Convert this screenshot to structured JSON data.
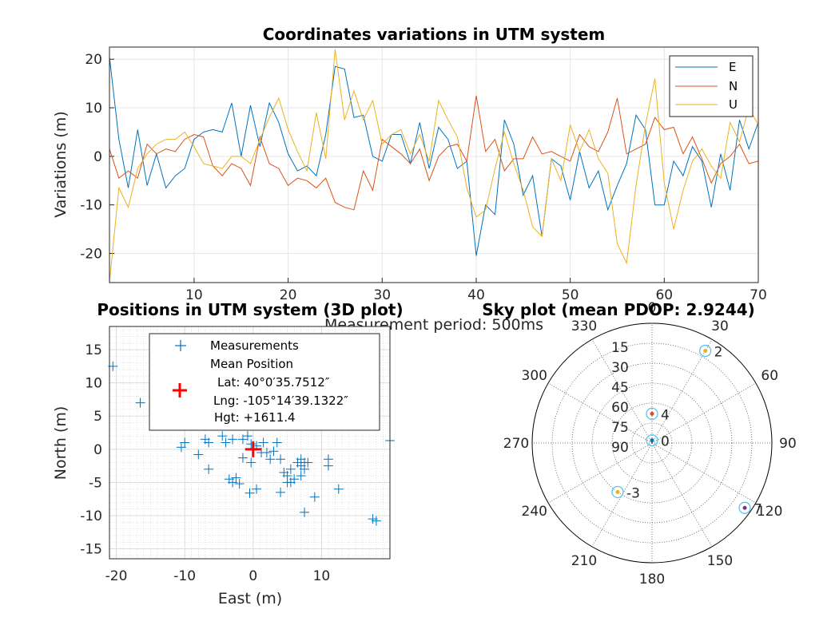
{
  "chart_data": [
    {
      "type": "line",
      "title": "Coordinates variations in UTM system",
      "xlabel": "Measurement period: 500ms",
      "ylabel": "Variations (m)",
      "xlim": [
        1,
        70
      ],
      "ylim": [
        -26,
        22.5
      ],
      "xticks": [
        10,
        20,
        30,
        40,
        50,
        60,
        70
      ],
      "yticks": [
        -20,
        -10,
        0,
        10,
        20
      ],
      "grid": true,
      "legend_position": "top-right",
      "colors": [
        "#0072BD",
        "#D95319",
        "#EDB120"
      ],
      "x": [
        1,
        2,
        3,
        4,
        5,
        6,
        7,
        8,
        9,
        10,
        11,
        12,
        13,
        14,
        15,
        16,
        17,
        18,
        19,
        20,
        21,
        22,
        23,
        24,
        25,
        26,
        27,
        28,
        29,
        30,
        31,
        32,
        33,
        34,
        35,
        36,
        37,
        38,
        39,
        40,
        41,
        42,
        43,
        44,
        45,
        46,
        47,
        48,
        49,
        50,
        51,
        52,
        53,
        54,
        55,
        56,
        57,
        58,
        59,
        60,
        61,
        62,
        63,
        64,
        65,
        66,
        67,
        68,
        69,
        70
      ],
      "series": [
        {
          "name": "E",
          "values": [
            20.5,
            3.5,
            -6.5,
            5.5,
            -6,
            0.5,
            -6.5,
            -4,
            -2.5,
            3.5,
            5,
            5.5,
            5,
            11,
            0,
            10.5,
            2,
            11,
            7,
            0.5,
            -3,
            -2,
            -4,
            4.5,
            18.5,
            18,
            8,
            8.5,
            0,
            -1,
            4.5,
            4.5,
            -1.5,
            7,
            -2.5,
            6,
            3.5,
            -2.5,
            -1,
            -20.5,
            -10,
            -12,
            7.5,
            2.5,
            -8,
            -4,
            -16.5,
            -0.5,
            -2,
            -9,
            1,
            -6.5,
            -3,
            -11,
            -6,
            -1.5,
            8.5,
            5.5,
            -10,
            -10,
            -1,
            -4,
            2,
            -1,
            -10.5,
            0.5,
            -7,
            7.5,
            1.5,
            7
          ]
        },
        {
          "name": "N",
          "values": [
            1.5,
            -4.5,
            -3,
            -4.5,
            2.5,
            0.5,
            1.5,
            1,
            3.5,
            4.5,
            4,
            -2,
            -4,
            -1.5,
            -2.5,
            -6,
            4,
            -1.5,
            -2.5,
            -6,
            -4.5,
            -5,
            -6.5,
            -4.5,
            -9.5,
            -10.5,
            -11,
            -3,
            -7,
            3.5,
            2,
            0.5,
            -1.5,
            1.5,
            -5,
            0,
            2,
            2.5,
            -1,
            12.5,
            1,
            3.5,
            -3,
            -0.5,
            -0.5,
            4,
            0.5,
            1,
            0,
            -1,
            4.5,
            2,
            1,
            5,
            12,
            0.5,
            1.5,
            2.5,
            8,
            5.5,
            6,
            0.5,
            4,
            -0.5,
            -5.5,
            -1.5,
            0,
            2.5,
            -1.5,
            -1
          ]
        },
        {
          "name": "U",
          "values": [
            -26,
            -6.5,
            -10.5,
            -2.5,
            0.5,
            2.5,
            3.5,
            3.5,
            5,
            2,
            -1.5,
            -2,
            -2.5,
            0,
            0,
            -1.5,
            3.5,
            8,
            12,
            5.5,
            1,
            -3,
            9,
            -0.5,
            22,
            7.5,
            13.5,
            7.5,
            11.5,
            2.5,
            4.5,
            5.5,
            0.5,
            4.5,
            -1,
            11.5,
            7.5,
            4,
            -6.5,
            -12.5,
            -11,
            -2.5,
            5,
            -1.5,
            -7,
            -14.5,
            -16.5,
            -0.5,
            -5,
            6.5,
            1,
            5.5,
            -0.5,
            -3.5,
            -18,
            -22,
            -6,
            6.5,
            16,
            -5.5,
            -15,
            -7,
            -1,
            1.5,
            -2,
            -4.5,
            7,
            3,
            10,
            6.5
          ]
        }
      ]
    },
    {
      "type": "scatter",
      "title": "Positions in UTM system (3D plot)",
      "xlabel": "East (m)",
      "ylabel": "North (m)",
      "xlim": [
        -21,
        20
      ],
      "ylim": [
        -16.5,
        18.5
      ],
      "xticks": [
        -20,
        -10,
        0,
        10
      ],
      "yticks": [
        -15,
        -10,
        -5,
        0,
        5,
        10,
        15
      ],
      "grid": true,
      "legend_position": "top-center",
      "series": [
        {
          "name": "Measurements",
          "color": "#0072BD",
          "marker": "+",
          "points": [
            [
              -20.5,
              12.5
            ],
            [
              -16.5,
              7
            ],
            [
              -10.5,
              0.3
            ],
            [
              -10,
              1
            ],
            [
              -8,
              -0.8
            ],
            [
              -7,
              1.5
            ],
            [
              -6.5,
              1
            ],
            [
              -6.5,
              -3
            ],
            [
              -4.5,
              2
            ],
            [
              -4,
              1
            ],
            [
              -3.5,
              -4.5
            ],
            [
              -3,
              1.5
            ],
            [
              -3,
              -5
            ],
            [
              -2.5,
              -4.3
            ],
            [
              -2,
              -5.2
            ],
            [
              -1.5,
              1.5
            ],
            [
              -1.5,
              -1.3
            ],
            [
              -0.8,
              2
            ],
            [
              -0.3,
              0.8
            ],
            [
              -0.5,
              -6.6
            ],
            [
              -0.3,
              -2
            ],
            [
              0.5,
              -6
            ],
            [
              0.5,
              0.5
            ],
            [
              1.2,
              -0.5
            ],
            [
              1.5,
              1
            ],
            [
              2,
              -0.5
            ],
            [
              2.5,
              -1.5
            ],
            [
              3,
              -0.3
            ],
            [
              3.5,
              1
            ],
            [
              4,
              -1.5
            ],
            [
              4,
              -6.5
            ],
            [
              4.5,
              -3.5
            ],
            [
              5,
              -4
            ],
            [
              5,
              -5
            ],
            [
              5.5,
              -5
            ],
            [
              5.5,
              -3
            ],
            [
              6,
              -4.5
            ],
            [
              6.5,
              -2
            ],
            [
              7,
              -1.5
            ],
            [
              7,
              -2.5
            ],
            [
              7,
              -4
            ],
            [
              7.5,
              -2
            ],
            [
              7.5,
              -3
            ],
            [
              7.5,
              -9.5
            ],
            [
              8,
              -2
            ],
            [
              9,
              -7.2
            ],
            [
              11,
              -1.5
            ],
            [
              11,
              -2.5
            ],
            [
              12.5,
              -6
            ],
            [
              17.5,
              -10.5
            ],
            [
              18,
              -10.8
            ],
            [
              20,
              1.3
            ]
          ]
        },
        {
          "name": "Mean Position",
          "color": "#FF0000",
          "marker": "+",
          "points": [
            [
              0,
              0
            ]
          ]
        }
      ],
      "legend": {
        "measurements": "Measurements",
        "mean_position": "Mean Position",
        "lat": "Lat: 40°0′35.7512″",
        "lng": "Lng: -105°14′39.1322″",
        "hgt": "Hgt: +1611.4"
      }
    },
    {
      "type": "scatter",
      "subtype": "polar-skyplot",
      "title": "Sky plot (mean PDOP: 2.9244)",
      "azimuth_labels": [
        "0",
        "30",
        "60",
        "90",
        "120",
        "150",
        "180",
        "210",
        "240",
        "270",
        "300",
        "330"
      ],
      "elevation_labels": [
        "15",
        "30",
        "45",
        "60",
        "75",
        "90"
      ],
      "satellites": [
        {
          "label": "2",
          "azimuth": 30,
          "elevation": 10,
          "color": "#EDB120"
        },
        {
          "label": "4",
          "azimuth": 0,
          "elevation": 68,
          "color": "#D95319"
        },
        {
          "label": "0",
          "azimuth": 0,
          "elevation": 88,
          "color": "#0072BD"
        },
        {
          "label": "-3",
          "azimuth": 215,
          "elevation": 45,
          "color": "#EDB120"
        },
        {
          "label": "7",
          "azimuth": 125,
          "elevation": 5,
          "color": "#7E2F8E"
        }
      ]
    }
  ]
}
